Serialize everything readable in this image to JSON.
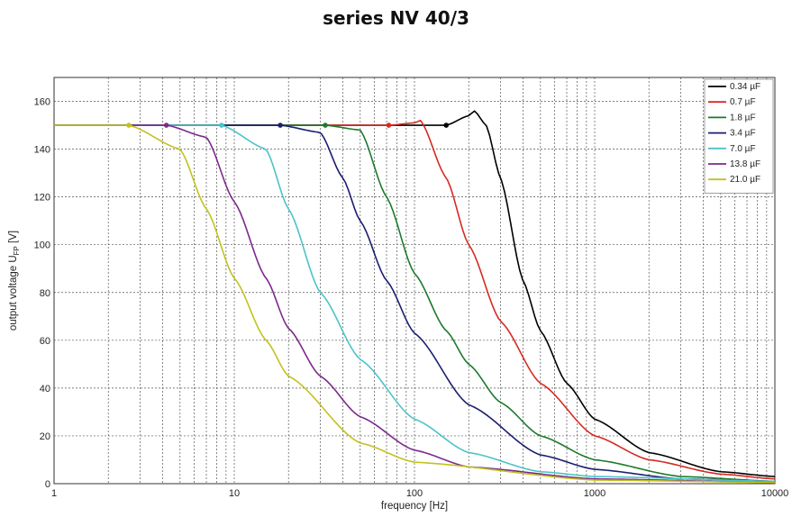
{
  "chart_data": {
    "type": "line",
    "title": "series NV 40/3",
    "xlabel": "frequency [Hz]",
    "ylabel": "output voltage U",
    "ylabel_sub": "FP",
    "ylabel_unit": " [V]",
    "xscale": "log",
    "xlim": [
      1,
      10000
    ],
    "ylim": [
      0,
      170
    ],
    "x_ticks": [
      1,
      10,
      100,
      1000,
      10000
    ],
    "x_tick_labels": [
      "1",
      "10",
      "100",
      "1000",
      "10000"
    ],
    "y_ticks": [
      0,
      20,
      40,
      60,
      80,
      100,
      120,
      140,
      160
    ],
    "y_tick_labels": [
      "0",
      "20",
      "40",
      "60",
      "80",
      "100",
      "120",
      "140",
      "160"
    ],
    "grid": true,
    "legend_position": "top-right",
    "series": [
      {
        "name": "0.34 µF",
        "color": "#000000",
        "fc": 320,
        "order": 2.2,
        "peak": 6,
        "peak_f": 215,
        "marker_x": 150,
        "x": [
          1,
          10,
          100,
          150,
          200,
          215,
          250,
          300,
          400,
          500,
          700,
          1000,
          2000,
          5000,
          10000
        ],
        "y": [
          150,
          150,
          150,
          150,
          154,
          156,
          150,
          128,
          85,
          64,
          42,
          27,
          13,
          5,
          3
        ]
      },
      {
        "name": "0.7 µF",
        "color": "#d62a24",
        "fc": 160,
        "order": 2.2,
        "peak": 2.5,
        "peak_f": 108,
        "marker_x": 72,
        "x": [
          1,
          10,
          72,
          100,
          108,
          150,
          200,
          300,
          500,
          1000,
          2000,
          5000,
          10000
        ],
        "y": [
          150,
          150,
          150,
          151,
          152,
          128,
          100,
          68,
          42,
          20,
          10,
          4,
          2
        ]
      },
      {
        "name": "1.8 µF",
        "color": "#1b7a2c",
        "fc": 66,
        "order": 2.2,
        "peak": 0,
        "peak_f": 50,
        "marker_x": 32,
        "x": [
          1,
          10,
          32,
          50,
          70,
          100,
          150,
          200,
          300,
          500,
          1000,
          3000,
          10000
        ],
        "y": [
          150,
          150,
          150,
          148,
          120,
          88,
          64,
          50,
          34,
          20,
          10,
          3,
          1
        ]
      },
      {
        "name": "3.4 µF",
        "color": "#1a1f6e",
        "fc": 36,
        "order": 2.2,
        "peak": 0,
        "peak_f": 30,
        "marker_x": 18,
        "x": [
          1,
          10,
          18,
          30,
          40,
          50,
          70,
          100,
          200,
          500,
          1000,
          3000,
          10000
        ],
        "y": [
          150,
          150,
          150,
          147,
          128,
          110,
          85,
          63,
          33,
          12,
          6,
          2,
          1
        ]
      },
      {
        "name": "7.0 µF",
        "color": "#4bc3c8",
        "fc": 17,
        "order": 2.2,
        "peak": 0,
        "peak_f": 14,
        "marker_x": 8.5,
        "x": [
          1,
          8.5,
          15,
          20,
          30,
          50,
          100,
          200,
          500,
          1000,
          10000
        ],
        "y": [
          150,
          150,
          140,
          115,
          80,
          52,
          27,
          13,
          5,
          3,
          1
        ]
      },
      {
        "name": "13.8 µF",
        "color": "#7b2a8c",
        "fc": 9,
        "order": 2.2,
        "peak": 0,
        "peak_f": 7,
        "marker_x": 4.2,
        "x": [
          1,
          4.2,
          7,
          10,
          15,
          20,
          30,
          50,
          100,
          200,
          1000,
          10000
        ],
        "y": [
          150,
          150,
          145,
          118,
          86,
          65,
          45,
          28,
          14,
          7,
          2,
          0.5
        ]
      },
      {
        "name": "21.0 µF",
        "color": "#c2c21e",
        "fc": 6,
        "order": 2.2,
        "peak": 0,
        "peak_f": 4,
        "marker_x": 2.6,
        "x": [
          1,
          2.6,
          5,
          7,
          10,
          15,
          20,
          50,
          100,
          1000,
          10000
        ],
        "y": [
          150,
          150,
          140,
          115,
          86,
          60,
          45,
          17,
          9,
          1.5,
          0.5
        ]
      }
    ]
  }
}
